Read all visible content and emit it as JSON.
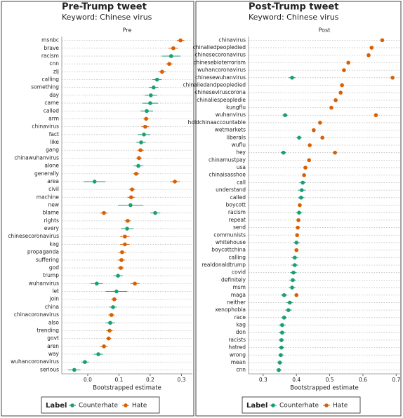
{
  "chart_data": [
    {
      "type": "dot",
      "title": "Pre-Trump tweet",
      "subtitle": "Keyword: Chinese virus",
      "facet": "Pre",
      "x_label": "Bootstrapped estimate",
      "legend_title": "Label",
      "grid": "y",
      "categories": [
        "msnbc",
        "brave",
        "racism",
        "cnn",
        "zlj",
        "calling",
        "something",
        "day",
        "came",
        "called",
        "arm",
        "chinavirus",
        "fact",
        "like",
        "gang",
        "chinawuhanvirus",
        "alone",
        "generally",
        "area",
        "civil",
        "machine",
        "new",
        "blame",
        "rights",
        "every",
        "chinesecoronavirus",
        "kag",
        "propaganda",
        "suffering",
        "god",
        "trump",
        "wuhanvirus",
        "let",
        "join",
        "china",
        "chinacoronavirus",
        "also",
        "trending",
        "govt",
        "aren",
        "way",
        "wuhancoronavirus",
        "serious"
      ],
      "series": [
        {
          "name": "Counterhate",
          "color": "#1b9e77",
          "values": [
            null,
            null,
            0.267,
            null,
            null,
            0.222,
            0.211,
            0.202,
            0.2,
            0.189,
            null,
            null,
            0.18,
            0.171,
            null,
            null,
            0.162,
            null,
            0.022,
            null,
            null,
            0.137,
            0.216,
            null,
            0.126,
            null,
            null,
            null,
            null,
            null,
            0.097,
            0.029,
            0.092,
            null,
            0.081,
            null,
            0.072,
            null,
            null,
            null,
            0.034,
            -0.009,
            -0.043
          ],
          "errors": [
            null,
            null,
            0.03,
            null,
            null,
            0.015,
            0.015,
            0.02,
            0.025,
            0.02,
            null,
            null,
            0.02,
            0.015,
            null,
            null,
            0.015,
            null,
            0.035,
            null,
            null,
            0.04,
            0.015,
            null,
            0.02,
            null,
            null,
            null,
            null,
            null,
            0.015,
            0.02,
            0.035,
            null,
            0.012,
            null,
            0.015,
            null,
            null,
            null,
            0.015,
            0.012,
            0.02
          ]
        },
        {
          "name": "Hate",
          "color": "#d95f02",
          "values": [
            0.297,
            0.274,
            null,
            0.261,
            0.238,
            null,
            null,
            null,
            null,
            null,
            0.187,
            0.184,
            null,
            null,
            0.169,
            0.164,
            null,
            0.155,
            0.279,
            0.142,
            0.139,
            null,
            0.052,
            0.128,
            null,
            0.119,
            0.119,
            0.11,
            0.108,
            0.106,
            null,
            0.151,
            null,
            0.085,
            null,
            0.076,
            null,
            0.07,
            0.067,
            0.052,
            null,
            null,
            null
          ],
          "errors": [
            0.012,
            0.015,
            null,
            0.01,
            0.012,
            null,
            null,
            null,
            null,
            null,
            0.01,
            0.012,
            null,
            null,
            0.01,
            0.01,
            null,
            0.01,
            0.015,
            0.01,
            0.012,
            null,
            0.012,
            0.01,
            null,
            0.015,
            0.015,
            0.012,
            0.012,
            0.01,
            null,
            0.015,
            null,
            0.01,
            null,
            0.01,
            null,
            0.01,
            0.008,
            0.012,
            null,
            null,
            null
          ]
        }
      ],
      "xlim": [
        -0.083,
        0.335
      ],
      "xticks": [
        {
          "value": 0,
          "label": "0.0"
        },
        0.1,
        0.2,
        0.3
      ]
    },
    {
      "type": "dot",
      "title": "Post-Trump tweet",
      "subtitle": "Keyword: Chinese virus",
      "facet": "Post",
      "x_label": "Bootstrapped estimate",
      "legend_title": "Label",
      "grid": "y",
      "categories": [
        "chinavirus",
        "chinaliedpeopledied",
        "chinesecoronavirus",
        "chinesebioterrorism",
        "wuhancoronavirus",
        "chinesewuhanvirus",
        "chinaliedandpeopledied",
        "chineseviruscorona",
        "chinaliespeopledie",
        "kungflu",
        "wuhanvirus",
        "holdchinaaccountable",
        "wetmarkets",
        "liberals",
        "wuflu",
        "hey",
        "chinamustpay",
        "usa",
        "chinaisasshoe",
        "call",
        "understand",
        "called",
        "boycott",
        "racism",
        "repeat",
        "send",
        "communists",
        "whitehouse",
        "boycottchina",
        "calling",
        "realdonaldtrump",
        "covid",
        "definitely",
        "msm",
        "maga",
        "neither",
        "xenophobia",
        "race",
        "kag",
        "don",
        "racists",
        "hatred",
        "wrong",
        "mean",
        "cnn"
      ],
      "series": [
        {
          "name": "Counterhate",
          "color": "#1b9e77",
          "values": [
            null,
            null,
            null,
            null,
            null,
            0.387,
            null,
            null,
            null,
            null,
            0.366,
            null,
            null,
            0.408,
            null,
            0.361,
            null,
            null,
            null,
            0.419,
            0.416,
            0.414,
            null,
            0.408,
            null,
            null,
            null,
            0.4,
            null,
            0.395,
            0.395,
            0.391,
            0.389,
            0.387,
            0.363,
            0.38,
            0.376,
            0.363,
            0.357,
            0.357,
            0.355,
            0.355,
            0.353,
            0.35,
            0.347
          ],
          "errors": [
            null,
            null,
            null,
            null,
            null,
            0.01,
            null,
            null,
            null,
            null,
            0.008,
            null,
            null,
            0.008,
            null,
            0.008,
            null,
            null,
            null,
            0.01,
            0.012,
            0.01,
            null,
            0.01,
            null,
            null,
            null,
            0.01,
            null,
            0.01,
            0.01,
            0.01,
            0.01,
            0.01,
            0.01,
            0.01,
            0.01,
            0.008,
            0.01,
            0.01,
            0.008,
            0.008,
            0.008,
            0.008,
            0.008
          ]
        },
        {
          "name": "Hate",
          "color": "#d95f02",
          "values": [
            0.658,
            0.626,
            0.617,
            0.556,
            0.543,
            0.689,
            0.537,
            0.533,
            0.518,
            0.505,
            0.639,
            0.471,
            0.452,
            0.478,
            0.44,
            0.516,
            0.438,
            0.427,
            0.423,
            null,
            null,
            null,
            0.41,
            null,
            0.406,
            0.404,
            0.402,
            null,
            0.4,
            null,
            null,
            null,
            null,
            null,
            0.4,
            null,
            null,
            null,
            null,
            null,
            null,
            null,
            null,
            null,
            null
          ],
          "errors": [
            0.005,
            0.005,
            0.005,
            0.005,
            0.005,
            0.005,
            0.005,
            0.005,
            0.005,
            0.005,
            0.005,
            0.005,
            0.005,
            0.005,
            0.005,
            0.005,
            0.005,
            0.005,
            0.005,
            null,
            null,
            null,
            0.005,
            null,
            0.005,
            0.005,
            0.005,
            null,
            0.005,
            null,
            null,
            null,
            null,
            null,
            0.005,
            null,
            null,
            null,
            null,
            null,
            null,
            null,
            null,
            null,
            null
          ]
        }
      ],
      "xlim": [
        0.256,
        0.712
      ],
      "xticks": [
        0.3,
        0.4,
        0.5,
        0.6,
        0.7
      ]
    }
  ]
}
